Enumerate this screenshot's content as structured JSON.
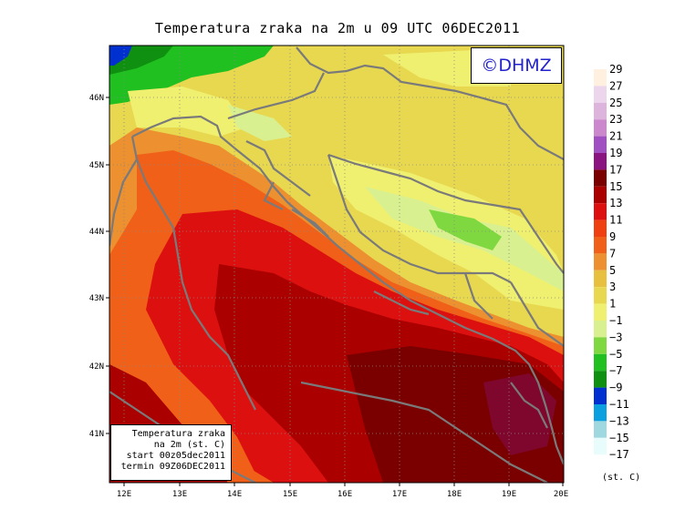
{
  "title": "Temperatura zraka na 2m u 09 UTC 06DEC2011",
  "logo": "©DHMZ",
  "info_box": {
    "line1": "Temperatura zraka",
    "line2": "na 2m (st. C)",
    "line3": "start 00z05dec2011",
    "line4": "termin 09Z06DEC2011"
  },
  "unit_label": "(st. C)",
  "lat_labels": [
    "46N",
    "45N",
    "44N",
    "43N",
    "42N",
    "41N"
  ],
  "lon_labels": [
    "12E",
    "13E",
    "14E",
    "15E",
    "16E",
    "17E",
    "18E",
    "19E",
    "20E"
  ],
  "legend": {
    "colors": [
      "#fff0e0",
      "#ecd6ec",
      "#dcb4dc",
      "#cc88cc",
      "#a050c0",
      "#8a1480",
      "#7a0000",
      "#aa0000",
      "#dd1010",
      "#ee4010",
      "#f06018",
      "#ec9030",
      "#e8c040",
      "#e8d850",
      "#f0f070",
      "#d8f090",
      "#80d840",
      "#20c020",
      "#109010",
      "#0030d0",
      "#0aa0e0",
      "#a0d8e0",
      "#e8fcfc"
    ],
    "labels": [
      "29",
      "27",
      "25",
      "23",
      "21",
      "19",
      "17",
      "15",
      "13",
      "11",
      "9",
      "7",
      "5",
      "3",
      "1",
      "−1",
      "−3",
      "−5",
      "−7",
      "−9",
      "−11",
      "−13",
      "−15",
      "−17"
    ]
  }
}
